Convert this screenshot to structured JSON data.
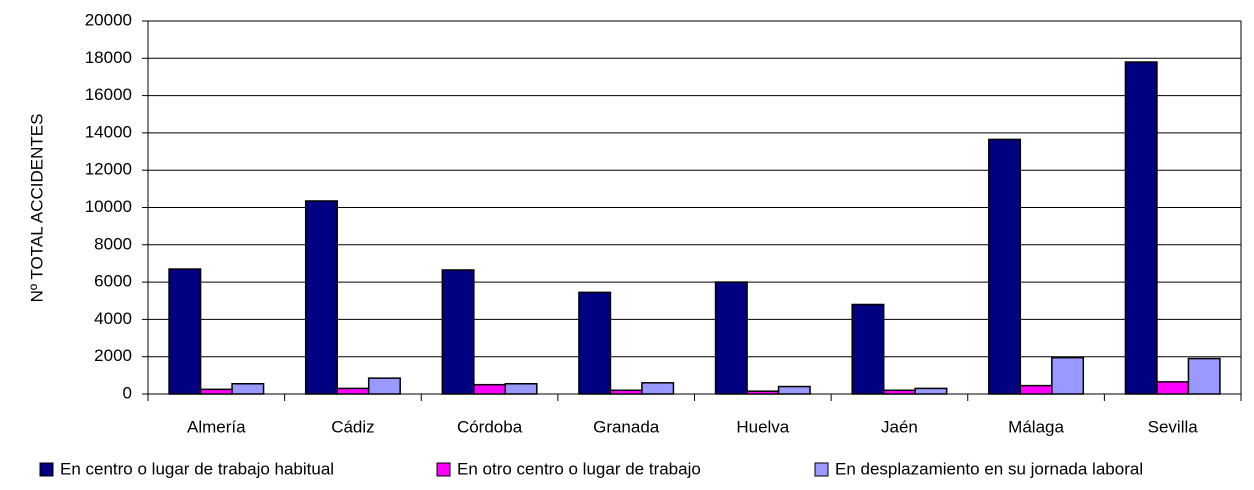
{
  "chart_data": {
    "type": "bar",
    "y_label": "Nº TOTAL ACCIDENTES",
    "categories": [
      "Almería",
      "Cádiz",
      "Córdoba",
      "Granada",
      "Huelva",
      "Jaén",
      "Málaga",
      "Sevilla"
    ],
    "series": [
      {
        "name": "En centro o lugar de trabajo habitual",
        "color": "#000080",
        "values": [
          6700,
          10350,
          6650,
          5450,
          6000,
          4800,
          13650,
          17800
        ]
      },
      {
        "name": "En otro centro o lugar de trabajo",
        "color": "#ff00ff",
        "values": [
          250,
          300,
          500,
          200,
          150,
          200,
          450,
          650
        ]
      },
      {
        "name": "En desplazamiento en su jornada laboral",
        "color": "#9999ff",
        "values": [
          550,
          850,
          550,
          600,
          400,
          300,
          1950,
          1900
        ]
      }
    ],
    "ylim": [
      0,
      20000
    ],
    "yticks": [
      0,
      2000,
      4000,
      6000,
      8000,
      10000,
      12000,
      14000,
      16000,
      18000,
      20000
    ],
    "grid": true,
    "legend": "bottom"
  }
}
